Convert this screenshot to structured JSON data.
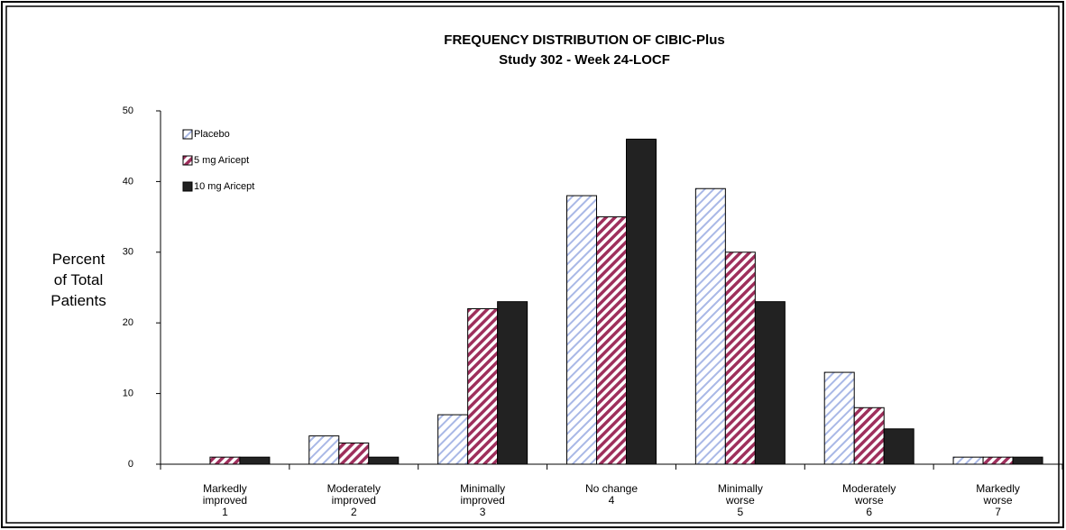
{
  "chart_data": {
    "type": "bar",
    "title": "FREQUENCY DISTRIBUTION OF CIBIC-Plus",
    "subtitle": "Study 302 - Week 24-LOCF",
    "y_label": "Percent\nof Total\nPatients",
    "categories": [
      "Markedly\nimproved\n1",
      "Moderately\nimproved\n2",
      "Minimally\nimproved\n3",
      "No change\n4",
      "Minimally\nworse\n5",
      "Moderately\nworse\n6",
      "Markedly\nworse\n7"
    ],
    "series": [
      {
        "name": "Placebo",
        "color": "#a9b8e6",
        "pattern": "hatched",
        "values": [
          0,
          4,
          7,
          38,
          39,
          13,
          1
        ]
      },
      {
        "name": "5 mg Aricept",
        "color": "#9e2f5c",
        "pattern": "hatched",
        "values": [
          1,
          3,
          22,
          35,
          30,
          8,
          1
        ]
      },
      {
        "name": "10 mg Aricept",
        "color": "#222222",
        "pattern": "solid",
        "values": [
          1,
          1,
          23,
          46,
          23,
          5,
          1
        ]
      }
    ],
    "ylim": [
      0,
      50
    ],
    "yticks": [
      0,
      10,
      20,
      30,
      40,
      50
    ],
    "grid": false,
    "legend": "top-left"
  }
}
